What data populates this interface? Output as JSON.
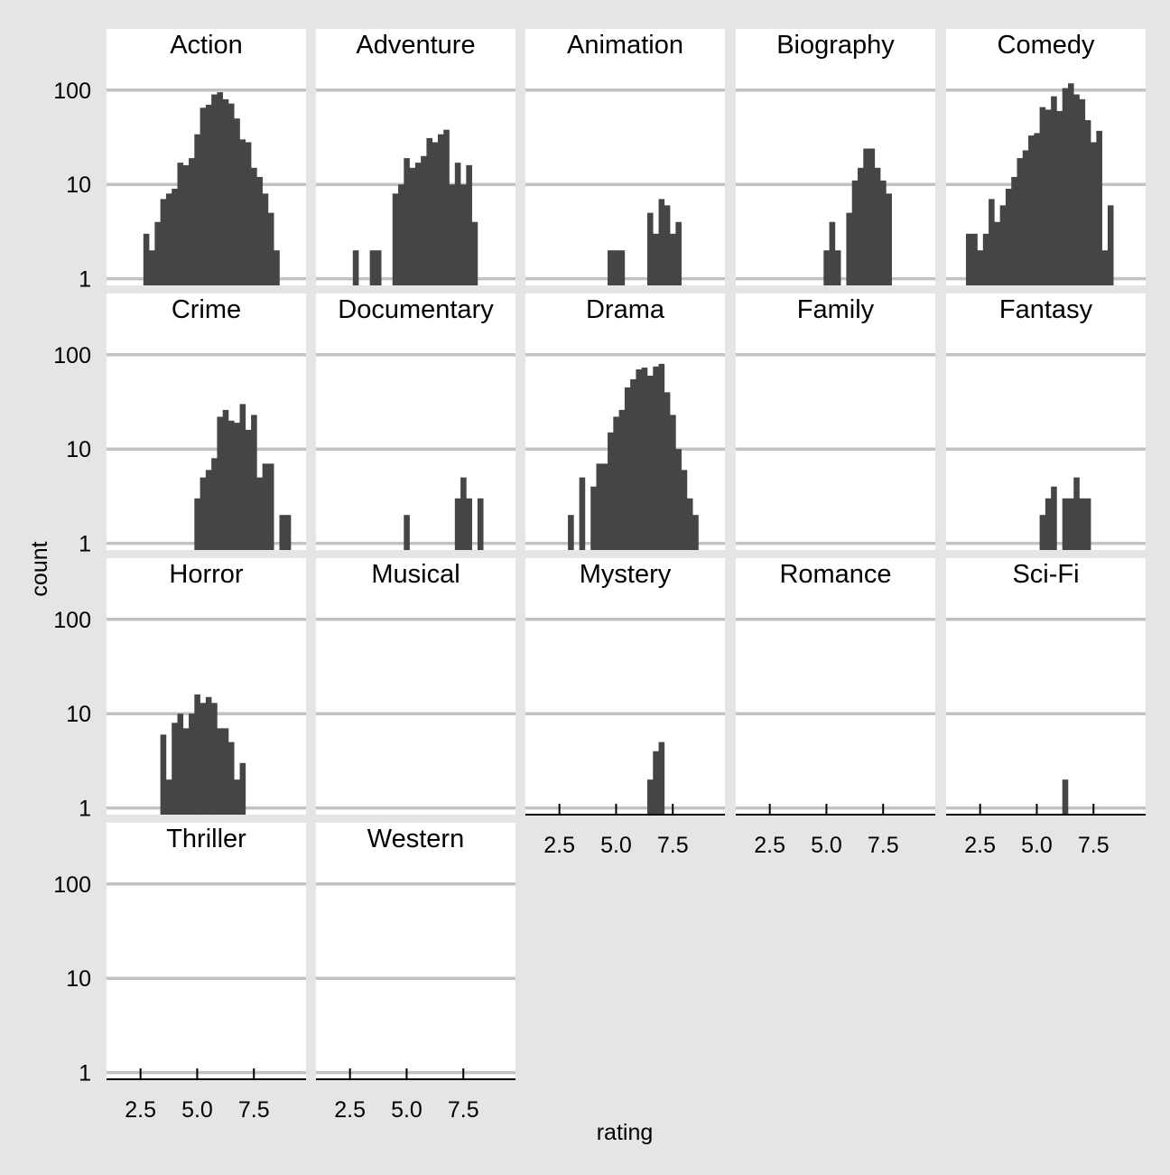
{
  "chart_data": {
    "type": "bar",
    "subtype": "faceted histogram",
    "xlabel": "rating",
    "ylabel": "count",
    "y_scale": "log10",
    "y_ticks": [
      1,
      10,
      100
    ],
    "y_tick_labels": [
      "1",
      "10",
      "100"
    ],
    "x_ticks": [
      2.5,
      5.0,
      7.5
    ],
    "x_tick_labels": [
      "2.5",
      "5.0",
      "7.5"
    ],
    "xlim": [
      1.0,
      9.8
    ],
    "ylim": [
      0.85,
      220
    ],
    "bin_width": 0.25,
    "bar_color": "#454545",
    "panel_background": "#ffffff",
    "plot_background": "#e5e5e5",
    "grid_color": "#c2c2c2",
    "grid": "horizontal major",
    "facets": [
      {
        "name": "Action",
        "bins": [
          {
            "x": 2.75,
            "count": 3
          },
          {
            "x": 3.0,
            "count": 2
          },
          {
            "x": 3.25,
            "count": 4
          },
          {
            "x": 3.5,
            "count": 7
          },
          {
            "x": 3.75,
            "count": 8
          },
          {
            "x": 4.0,
            "count": 9
          },
          {
            "x": 4.25,
            "count": 17
          },
          {
            "x": 4.5,
            "count": 16
          },
          {
            "x": 4.75,
            "count": 19
          },
          {
            "x": 5.0,
            "count": 34
          },
          {
            "x": 5.25,
            "count": 65
          },
          {
            "x": 5.5,
            "count": 70
          },
          {
            "x": 5.75,
            "count": 90
          },
          {
            "x": 6.0,
            "count": 95
          },
          {
            "x": 6.25,
            "count": 80
          },
          {
            "x": 6.5,
            "count": 72
          },
          {
            "x": 6.75,
            "count": 50
          },
          {
            "x": 7.0,
            "count": 30
          },
          {
            "x": 7.25,
            "count": 28
          },
          {
            "x": 7.5,
            "count": 15
          },
          {
            "x": 7.75,
            "count": 12
          },
          {
            "x": 8.0,
            "count": 8
          },
          {
            "x": 8.25,
            "count": 5
          },
          {
            "x": 8.5,
            "count": 2
          }
        ]
      },
      {
        "name": "Adventure",
        "bins": [
          {
            "x": 2.75,
            "count": 2
          },
          {
            "x": 3.5,
            "count": 2
          },
          {
            "x": 3.75,
            "count": 2
          },
          {
            "x": 4.5,
            "count": 8
          },
          {
            "x": 4.75,
            "count": 10
          },
          {
            "x": 5.0,
            "count": 19
          },
          {
            "x": 5.25,
            "count": 15
          },
          {
            "x": 5.5,
            "count": 17
          },
          {
            "x": 5.75,
            "count": 20
          },
          {
            "x": 6.0,
            "count": 31
          },
          {
            "x": 6.25,
            "count": 28
          },
          {
            "x": 6.5,
            "count": 34
          },
          {
            "x": 6.75,
            "count": 38
          },
          {
            "x": 7.0,
            "count": 10
          },
          {
            "x": 7.25,
            "count": 17
          },
          {
            "x": 7.5,
            "count": 10
          },
          {
            "x": 7.75,
            "count": 16
          },
          {
            "x": 8.0,
            "count": 4
          }
        ]
      },
      {
        "name": "Animation",
        "bins": [
          {
            "x": 4.75,
            "count": 2
          },
          {
            "x": 5.0,
            "count": 2
          },
          {
            "x": 5.25,
            "count": 2
          },
          {
            "x": 6.5,
            "count": 5
          },
          {
            "x": 6.75,
            "count": 3
          },
          {
            "x": 7.0,
            "count": 7
          },
          {
            "x": 7.25,
            "count": 6
          },
          {
            "x": 7.5,
            "count": 3
          },
          {
            "x": 7.75,
            "count": 4
          }
        ]
      },
      {
        "name": "Biography",
        "bins": [
          {
            "x": 5.0,
            "count": 2
          },
          {
            "x": 5.25,
            "count": 4
          },
          {
            "x": 5.5,
            "count": 2
          },
          {
            "x": 6.0,
            "count": 5
          },
          {
            "x": 6.25,
            "count": 11
          },
          {
            "x": 6.5,
            "count": 15
          },
          {
            "x": 6.75,
            "count": 24
          },
          {
            "x": 7.0,
            "count": 24
          },
          {
            "x": 7.25,
            "count": 15
          },
          {
            "x": 7.5,
            "count": 11
          },
          {
            "x": 7.75,
            "count": 8
          }
        ]
      },
      {
        "name": "Comedy",
        "bins": [
          {
            "x": 2.0,
            "count": 3
          },
          {
            "x": 2.25,
            "count": 3
          },
          {
            "x": 2.5,
            "count": 2
          },
          {
            "x": 2.75,
            "count": 3
          },
          {
            "x": 3.0,
            "count": 7
          },
          {
            "x": 3.25,
            "count": 4
          },
          {
            "x": 3.5,
            "count": 6
          },
          {
            "x": 3.75,
            "count": 9
          },
          {
            "x": 4.0,
            "count": 12
          },
          {
            "x": 4.25,
            "count": 19
          },
          {
            "x": 4.5,
            "count": 23
          },
          {
            "x": 4.75,
            "count": 33
          },
          {
            "x": 5.0,
            "count": 35
          },
          {
            "x": 5.25,
            "count": 66
          },
          {
            "x": 5.5,
            "count": 62
          },
          {
            "x": 5.75,
            "count": 86
          },
          {
            "x": 6.0,
            "count": 60
          },
          {
            "x": 6.25,
            "count": 105
          },
          {
            "x": 6.5,
            "count": 118
          },
          {
            "x": 6.75,
            "count": 90
          },
          {
            "x": 7.0,
            "count": 80
          },
          {
            "x": 7.25,
            "count": 48
          },
          {
            "x": 7.5,
            "count": 28
          },
          {
            "x": 7.75,
            "count": 37
          },
          {
            "x": 8.0,
            "count": 2
          },
          {
            "x": 8.25,
            "count": 6
          }
        ]
      },
      {
        "name": "Crime",
        "bins": [
          {
            "x": 5.0,
            "count": 3
          },
          {
            "x": 5.25,
            "count": 5
          },
          {
            "x": 5.5,
            "count": 6
          },
          {
            "x": 5.75,
            "count": 8
          },
          {
            "x": 6.0,
            "count": 22
          },
          {
            "x": 6.25,
            "count": 26
          },
          {
            "x": 6.5,
            "count": 20
          },
          {
            "x": 6.75,
            "count": 19
          },
          {
            "x": 7.0,
            "count": 30
          },
          {
            "x": 7.25,
            "count": 16
          },
          {
            "x": 7.5,
            "count": 23
          },
          {
            "x": 7.75,
            "count": 5
          },
          {
            "x": 8.0,
            "count": 7
          },
          {
            "x": 8.25,
            "count": 7
          },
          {
            "x": 8.75,
            "count": 2
          },
          {
            "x": 9.0,
            "count": 2
          }
        ]
      },
      {
        "name": "Documentary",
        "bins": [
          {
            "x": 5.0,
            "count": 2
          },
          {
            "x": 7.25,
            "count": 3
          },
          {
            "x": 7.5,
            "count": 5
          },
          {
            "x": 7.75,
            "count": 3
          },
          {
            "x": 8.25,
            "count": 3
          }
        ]
      },
      {
        "name": "Drama",
        "bins": [
          {
            "x": 3.0,
            "count": 2
          },
          {
            "x": 3.5,
            "count": 5
          },
          {
            "x": 4.0,
            "count": 4
          },
          {
            "x": 4.25,
            "count": 7
          },
          {
            "x": 4.5,
            "count": 7
          },
          {
            "x": 4.75,
            "count": 15
          },
          {
            "x": 5.0,
            "count": 22
          },
          {
            "x": 5.25,
            "count": 26
          },
          {
            "x": 5.5,
            "count": 45
          },
          {
            "x": 5.75,
            "count": 55
          },
          {
            "x": 6.0,
            "count": 70
          },
          {
            "x": 6.25,
            "count": 73
          },
          {
            "x": 6.5,
            "count": 60
          },
          {
            "x": 6.75,
            "count": 75
          },
          {
            "x": 7.0,
            "count": 80
          },
          {
            "x": 7.25,
            "count": 40
          },
          {
            "x": 7.5,
            "count": 23
          },
          {
            "x": 7.75,
            "count": 10
          },
          {
            "x": 8.0,
            "count": 6
          },
          {
            "x": 8.25,
            "count": 3
          },
          {
            "x": 8.5,
            "count": 2
          }
        ]
      },
      {
        "name": "Family",
        "bins": []
      },
      {
        "name": "Fantasy",
        "bins": [
          {
            "x": 5.25,
            "count": 2
          },
          {
            "x": 5.5,
            "count": 3
          },
          {
            "x": 5.75,
            "count": 4
          },
          {
            "x": 6.25,
            "count": 3
          },
          {
            "x": 6.5,
            "count": 3
          },
          {
            "x": 6.75,
            "count": 5
          },
          {
            "x": 7.0,
            "count": 3
          },
          {
            "x": 7.25,
            "count": 3
          }
        ]
      },
      {
        "name": "Horror",
        "bins": [
          {
            "x": 3.5,
            "count": 6
          },
          {
            "x": 3.75,
            "count": 2
          },
          {
            "x": 4.0,
            "count": 8
          },
          {
            "x": 4.25,
            "count": 10
          },
          {
            "x": 4.5,
            "count": 7
          },
          {
            "x": 4.75,
            "count": 10
          },
          {
            "x": 5.0,
            "count": 16
          },
          {
            "x": 5.25,
            "count": 13
          },
          {
            "x": 5.5,
            "count": 15
          },
          {
            "x": 5.75,
            "count": 13
          },
          {
            "x": 6.0,
            "count": 7
          },
          {
            "x": 6.25,
            "count": 7
          },
          {
            "x": 6.5,
            "count": 5
          },
          {
            "x": 6.75,
            "count": 2
          },
          {
            "x": 7.0,
            "count": 3
          }
        ]
      },
      {
        "name": "Musical",
        "bins": []
      },
      {
        "name": "Mystery",
        "bins": [
          {
            "x": 6.5,
            "count": 2
          },
          {
            "x": 6.75,
            "count": 4
          },
          {
            "x": 7.0,
            "count": 5
          }
        ]
      },
      {
        "name": "Romance",
        "bins": []
      },
      {
        "name": "Sci-Fi",
        "bins": [
          {
            "x": 6.25,
            "count": 2
          }
        ]
      },
      {
        "name": "Thriller",
        "bins": []
      },
      {
        "name": "Western",
        "bins": []
      }
    ]
  }
}
